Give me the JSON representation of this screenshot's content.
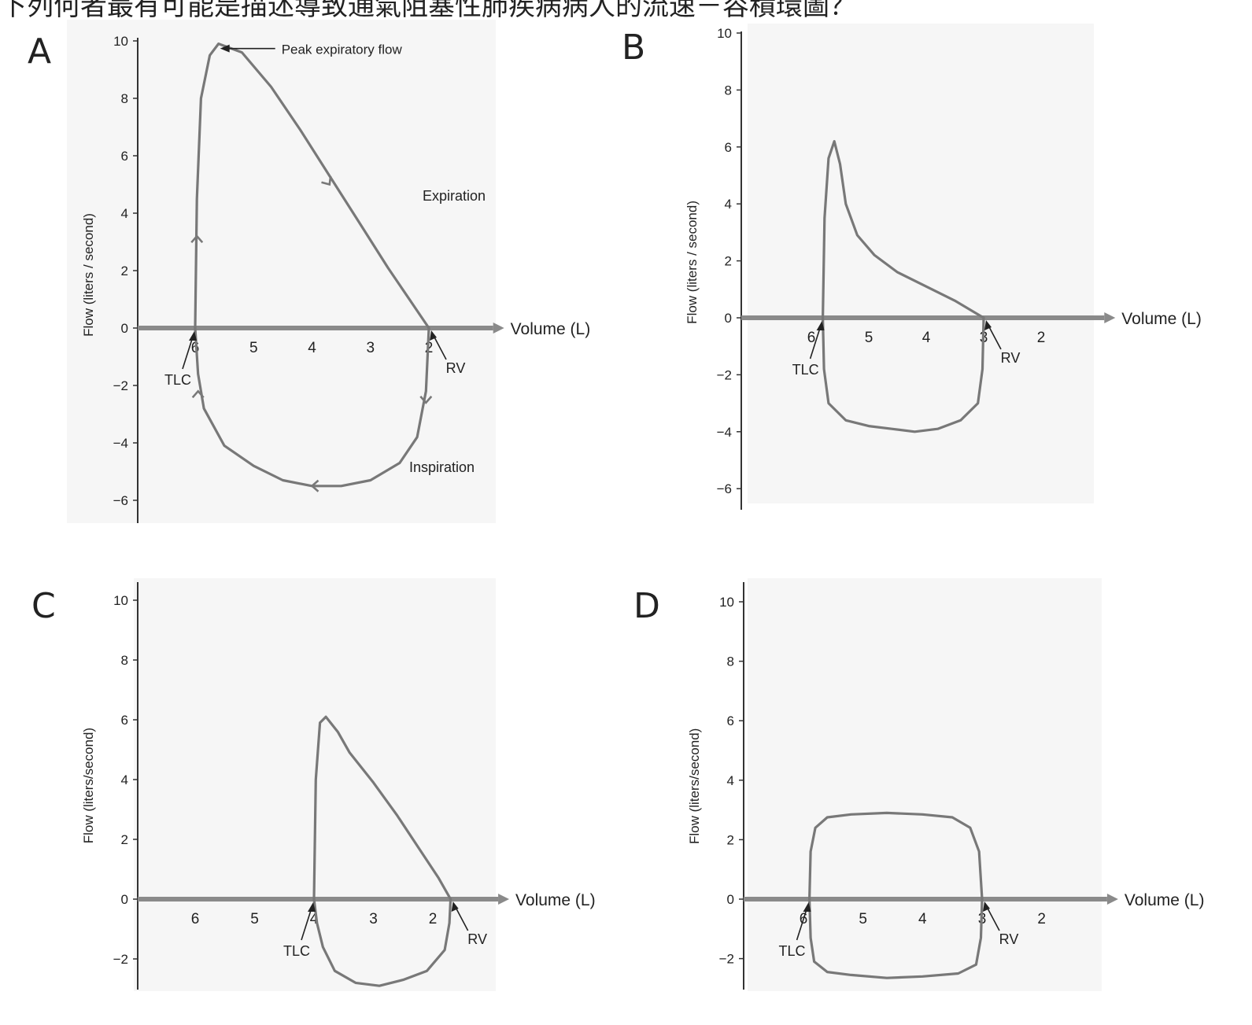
{
  "question_text": "下列何者最有可能是描述導致通氣阻塞性肺疾病病人的流速－容積環圖？",
  "colors": {
    "curve": "#787878",
    "axis": "#8a8a8a",
    "text": "#222222",
    "panel_bg": "#f6f6f6"
  },
  "chart_data": [
    {
      "type": "line",
      "panel": "A",
      "xlabel": "Volume (L)",
      "ylabel": "Flow (liters / second)",
      "x_reversed": true,
      "xlim": [
        8.3,
        0.9
      ],
      "ylim": [
        -6.7,
        10.4
      ],
      "x_ticks": [
        "6",
        "5",
        "4",
        "3",
        "2"
      ],
      "y_ticks": [
        "10",
        "8",
        "6",
        "4",
        "2",
        "0",
        "−2",
        "−4",
        "−6"
      ],
      "annotations": {
        "peak": "Peak expiratory flow",
        "expiration": "Expiration",
        "inspiration": "Inspiration",
        "tlc": "TLC",
        "rv": "RV"
      },
      "expiration": {
        "x": [
          6.0,
          5.97,
          5.9,
          5.75,
          5.6,
          5.2,
          4.7,
          4.2,
          3.7,
          3.2,
          2.7,
          2.3,
          2.0
        ],
        "y": [
          0,
          4.5,
          8.0,
          9.5,
          9.9,
          9.6,
          8.4,
          6.9,
          5.3,
          3.7,
          2.1,
          0.9,
          0
        ]
      },
      "inspiration": {
        "x": [
          2.0,
          2.05,
          2.2,
          2.5,
          3.0,
          3.5,
          4.0,
          4.5,
          5.0,
          5.5,
          5.85,
          5.95,
          6.0
        ],
        "y": [
          0,
          -2.2,
          -3.8,
          -4.7,
          -5.3,
          -5.5,
          -5.5,
          -5.3,
          -4.8,
          -4.1,
          -2.8,
          -1.6,
          0
        ]
      }
    },
    {
      "type": "line",
      "panel": "B",
      "xlabel": "Volume (L)",
      "ylabel": "Flow (liters / second)",
      "x_reversed": true,
      "xlim": [
        8.0,
        0.9
      ],
      "ylim": [
        -6.3,
        10.2
      ],
      "x_ticks": [
        "6",
        "5",
        "4",
        "3",
        "2"
      ],
      "y_ticks": [
        "10",
        "8",
        "6",
        "4",
        "2",
        "0",
        "−2",
        "−4",
        "−6"
      ],
      "annotations": {
        "tlc": "TLC",
        "rv": "RV"
      },
      "expiration": {
        "x": [
          5.8,
          5.77,
          5.7,
          5.6,
          5.5,
          5.4,
          5.2,
          4.9,
          4.5,
          4.0,
          3.5,
          3.0
        ],
        "y": [
          0,
          3.5,
          5.6,
          6.2,
          5.4,
          4.0,
          2.9,
          2.2,
          1.6,
          1.1,
          0.6,
          0
        ]
      },
      "inspiration": {
        "x": [
          3.0,
          3.02,
          3.1,
          3.4,
          3.8,
          4.2,
          4.6,
          5.0,
          5.4,
          5.7,
          5.78,
          5.8
        ],
        "y": [
          0,
          -1.8,
          -3.0,
          -3.6,
          -3.9,
          -4.0,
          -3.9,
          -3.8,
          -3.6,
          -3.0,
          -1.8,
          0
        ]
      }
    },
    {
      "type": "line",
      "panel": "C",
      "xlabel": "Volume (L)",
      "ylabel": "Flow (liters/second)",
      "x_reversed": true,
      "xlim": [
        8.0,
        0.9
      ],
      "ylim": [
        -3.1,
        10.7
      ],
      "x_ticks": [
        "6",
        "5",
        "4",
        "3",
        "2"
      ],
      "y_ticks": [
        "10",
        "8",
        "6",
        "4",
        "2",
        "0",
        "−2"
      ],
      "annotations": {
        "tlc": "TLC",
        "rv": "RV"
      },
      "expiration": {
        "x": [
          4.0,
          3.97,
          3.9,
          3.8,
          3.6,
          3.4,
          3.0,
          2.6,
          2.2,
          1.9,
          1.7
        ],
        "y": [
          0,
          4.0,
          5.9,
          6.1,
          5.6,
          4.9,
          3.9,
          2.8,
          1.6,
          0.7,
          0
        ]
      },
      "inspiration": {
        "x": [
          1.7,
          1.72,
          1.8,
          2.1,
          2.5,
          2.9,
          3.3,
          3.65,
          3.85,
          3.95,
          4.0
        ],
        "y": [
          0,
          -0.8,
          -1.7,
          -2.4,
          -2.7,
          -2.9,
          -2.8,
          -2.4,
          -1.6,
          -0.8,
          0
        ]
      }
    },
    {
      "type": "line",
      "panel": "D",
      "xlabel": "Volume (L)",
      "ylabel": "Flow (liters/second)",
      "x_reversed": true,
      "xlim": [
        8.0,
        0.9
      ],
      "ylim": [
        -3.1,
        10.7
      ],
      "x_ticks": [
        "6",
        "5",
        "4",
        "3",
        "2"
      ],
      "y_ticks": [
        "10",
        "8",
        "6",
        "4",
        "2",
        "0",
        "−2"
      ],
      "annotations": {
        "tlc": "TLC",
        "rv": "RV"
      },
      "expiration": {
        "x": [
          5.9,
          5.88,
          5.8,
          5.6,
          5.2,
          4.6,
          4.0,
          3.5,
          3.2,
          3.05,
          3.0
        ],
        "y": [
          0,
          1.6,
          2.4,
          2.75,
          2.85,
          2.9,
          2.85,
          2.75,
          2.4,
          1.6,
          0
        ]
      },
      "inspiration": {
        "x": [
          3.0,
          3.02,
          3.1,
          3.4,
          4.0,
          4.6,
          5.2,
          5.6,
          5.82,
          5.88,
          5.9
        ],
        "y": [
          0,
          -1.3,
          -2.2,
          -2.5,
          -2.6,
          -2.65,
          -2.55,
          -2.45,
          -2.1,
          -1.3,
          0
        ]
      }
    }
  ]
}
